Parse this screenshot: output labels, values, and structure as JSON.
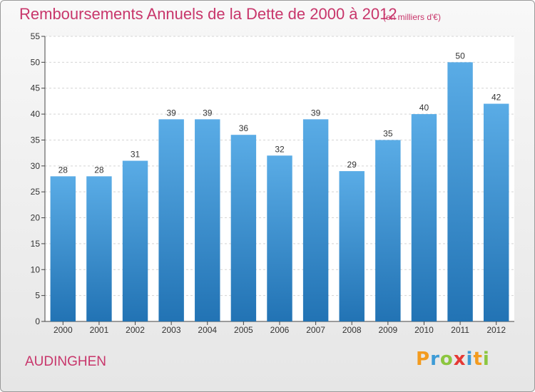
{
  "chart_data": {
    "type": "bar",
    "title": "Remboursements Annuels de la Dette de 2000 à 2012",
    "subtitle": "(en milliers d'€)",
    "categories": [
      "2000",
      "2001",
      "2002",
      "2003",
      "2004",
      "2005",
      "2006",
      "2007",
      "2008",
      "2009",
      "2010",
      "2011",
      "2012"
    ],
    "values": [
      28,
      28,
      31,
      39,
      39,
      36,
      32,
      39,
      29,
      35,
      40,
      50,
      42
    ],
    "ylim": [
      0,
      55
    ],
    "yticks": [
      0,
      5,
      10,
      15,
      20,
      25,
      30,
      35,
      40,
      45,
      50,
      55
    ],
    "grid": true,
    "legend": "none",
    "bar_color_top": "#5aace6",
    "bar_color_bottom": "#2273b4"
  },
  "footer": {
    "place": "AUDINGHEN",
    "logo": [
      "P",
      "r",
      "o",
      "x",
      "i",
      "t",
      "i"
    ]
  },
  "colors": {
    "title": "#c8366b",
    "logo": [
      "#f39b1f",
      "#3d9bd6",
      "#8cc63f",
      "#e53935",
      "#3d9bd6",
      "#f39b1f",
      "#8cc63f"
    ]
  }
}
